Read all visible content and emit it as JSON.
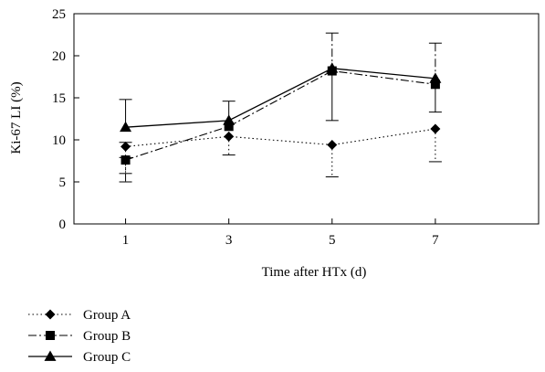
{
  "chart_data": {
    "type": "line",
    "xlabel": "Time after HTx (d)",
    "ylabel": "Ki-67 LI (%)",
    "x": [
      1,
      3,
      5,
      7
    ],
    "x_ticks": [
      "1",
      "3",
      "5",
      "7"
    ],
    "xlim": [
      0,
      9
    ],
    "ylim": [
      0,
      25
    ],
    "y_ticks": [
      0,
      5,
      10,
      15,
      20,
      25
    ],
    "grid": false,
    "legend_position": "bottom-left, below plot",
    "series": [
      {
        "name": "Group A",
        "marker": "diamond",
        "line_style": "dotted",
        "values": [
          9.2,
          10.4,
          9.4,
          11.3
        ],
        "error": [
          [
            3.2,
            0.5
          ],
          [
            2.2,
            0
          ],
          [
            3.8,
            0
          ],
          [
            3.9,
            0
          ]
        ]
      },
      {
        "name": "Group B",
        "marker": "square",
        "line_style": "dash-dot",
        "values": [
          7.6,
          11.6,
          18.2,
          16.6
        ],
        "error": [
          [
            2.6,
            0.3
          ],
          [
            0,
            0
          ],
          [
            0,
            4.5
          ],
          [
            0,
            4.9
          ]
        ]
      },
      {
        "name": "Group C",
        "marker": "triangle",
        "line_style": "solid",
        "values": [
          11.5,
          12.3,
          18.5,
          17.3
        ],
        "error": [
          [
            0,
            3.3
          ],
          [
            0,
            2.3
          ],
          [
            6.2,
            0
          ],
          [
            4.0,
            0
          ]
        ]
      }
    ]
  }
}
